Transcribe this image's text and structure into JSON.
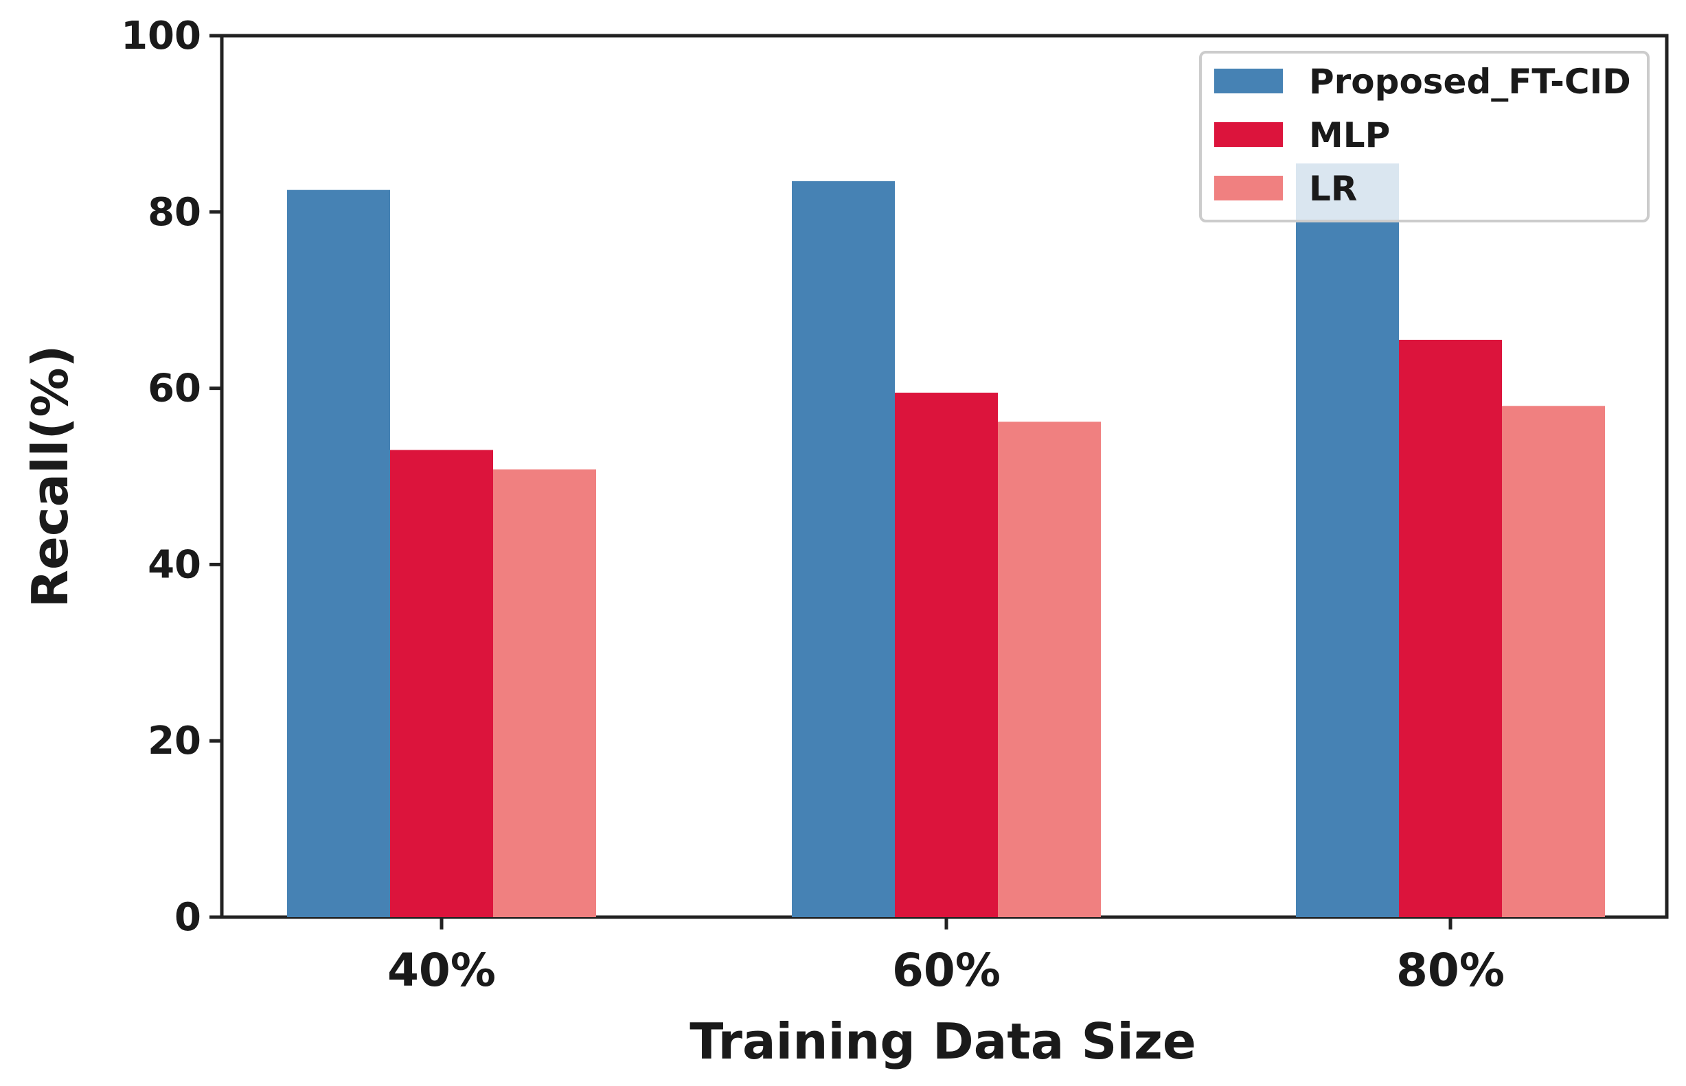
{
  "chart_data": {
    "type": "bar",
    "title": "",
    "xlabel": "Training Data Size",
    "ylabel": "Recall(%)",
    "categories": [
      "40%",
      "60%",
      "80%"
    ],
    "ylim": [
      0,
      100
    ],
    "yticks": [
      "0",
      "20",
      "40",
      "60",
      "80",
      "100"
    ],
    "grid": false,
    "legend_position": "top-right",
    "series": [
      {
        "name": "Proposed_FT-CID",
        "color": "#4682b4",
        "values": [
          82.5,
          83.5,
          85.5
        ]
      },
      {
        "name": "MLP",
        "color": "#dc143c",
        "values": [
          53.0,
          59.5,
          65.5
        ]
      },
      {
        "name": "LR",
        "color": "#f08080",
        "values": [
          50.8,
          56.2,
          58.0
        ]
      }
    ]
  }
}
